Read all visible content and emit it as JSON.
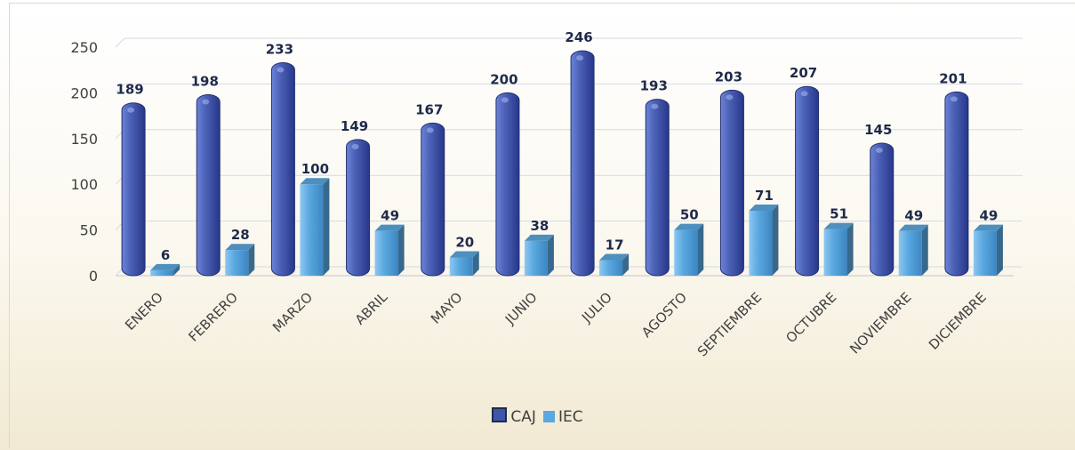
{
  "chart_data": {
    "type": "bar",
    "categories": [
      "ENERO",
      "FEBRERO",
      "MARZO",
      "ABRIL",
      "MAYO",
      "JUNIO",
      "JULIO",
      "AGOSTO",
      "SEPTIEMBRE",
      "OCTUBRE",
      "NOVIEMBRE",
      "DICIEMBRE"
    ],
    "series": [
      {
        "name": "CAJ",
        "values": [
          189,
          198,
          233,
          149,
          167,
          200,
          246,
          193,
          203,
          207,
          145,
          201
        ],
        "color": "#3f56a8"
      },
      {
        "name": "IEC",
        "values": [
          6,
          28,
          100,
          49,
          20,
          38,
          17,
          50,
          71,
          51,
          49,
          49
        ],
        "color": "#5aa8e0"
      }
    ],
    "ylim": [
      0,
      250
    ],
    "yticks": [
      0,
      50,
      100,
      150,
      200,
      250
    ],
    "grid": true,
    "legend_position": "bottom"
  }
}
